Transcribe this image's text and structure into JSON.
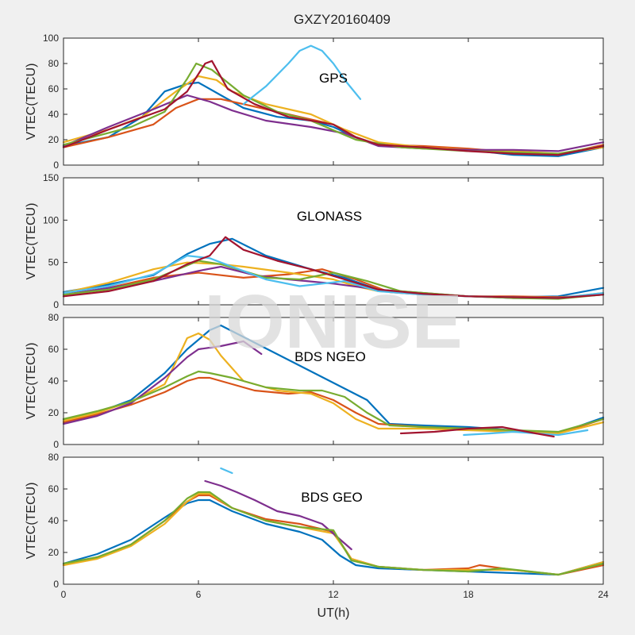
{
  "title": "GXZY20160409",
  "watermark": "IONISE",
  "x_axis": {
    "label": "UT(h)",
    "range": [
      0,
      24
    ],
    "ticks": [
      "0",
      "6",
      "12",
      "18",
      "24"
    ]
  },
  "colors": [
    "#0072bd",
    "#d95319",
    "#edb120",
    "#7e2f8e",
    "#77ac30",
    "#4dbeee",
    "#a2142f"
  ],
  "chart_data": [
    {
      "type": "line",
      "annotation": "GPS",
      "ylabel": "VTEC(TECU)",
      "ylim": [
        0,
        100
      ],
      "yticks": [
        "0",
        "20",
        "40",
        "60",
        "80",
        "100"
      ],
      "series": [
        {
          "x": [
            0,
            2,
            3.5,
            4.5,
            5.5,
            6,
            7,
            8,
            9.5,
            11,
            12,
            13,
            14,
            16,
            18,
            20,
            22,
            24
          ],
          "values": [
            15,
            22,
            38,
            58,
            64,
            65,
            55,
            45,
            38,
            35,
            30,
            22,
            16,
            14,
            12,
            8,
            7,
            14
          ]
        },
        {
          "x": [
            0,
            2,
            4,
            5,
            6,
            7,
            8,
            10,
            12,
            13,
            14,
            16,
            18,
            20,
            22,
            24
          ],
          "values": [
            14,
            22,
            32,
            45,
            52,
            52,
            48,
            40,
            32,
            22,
            16,
            15,
            13,
            10,
            8,
            16
          ]
        },
        {
          "x": [
            0,
            2,
            3.5,
            5,
            6,
            6.8,
            7.5,
            9,
            11,
            12.5,
            14,
            16,
            18,
            20,
            22,
            24
          ],
          "values": [
            18,
            28,
            38,
            58,
            70,
            67,
            58,
            48,
            40,
            28,
            18,
            14,
            12,
            11,
            9,
            14
          ]
        },
        {
          "x": [
            0,
            2,
            4,
            5.5,
            6.5,
            7.5,
            9,
            11,
            12.5,
            14,
            16,
            18,
            20,
            22,
            24
          ],
          "values": [
            15,
            30,
            44,
            55,
            50,
            43,
            35,
            30,
            25,
            15,
            13,
            12,
            12,
            11,
            18
          ]
        },
        {
          "x": [
            0,
            3,
            4.5,
            5.5,
            5.9,
            6.6,
            8,
            9.5,
            11,
            13,
            15,
            18,
            20,
            22,
            24
          ],
          "values": [
            16,
            30,
            42,
            68,
            80,
            75,
            55,
            42,
            35,
            20,
            14,
            11,
            10,
            9,
            15
          ]
        },
        {
          "x": [
            8,
            9,
            10,
            10.5,
            11,
            11.5,
            12,
            12.6,
            13.2
          ],
          "values": [
            48,
            62,
            80,
            90,
            94,
            90,
            80,
            65,
            52
          ]
        },
        {
          "x": [
            0,
            2,
            4.5,
            5.5,
            6.3,
            6.6,
            7.3,
            8.5,
            10,
            12,
            13,
            14,
            16,
            18,
            20,
            22,
            24
          ],
          "values": [
            14,
            28,
            44,
            58,
            80,
            82,
            60,
            48,
            38,
            32,
            22,
            16,
            14,
            11,
            9,
            8,
            15
          ]
        }
      ]
    },
    {
      "type": "line",
      "annotation": "GLONASS",
      "ylabel": "VTEC(TECU)",
      "ylim": [
        0,
        150
      ],
      "yticks": [
        "0",
        "50",
        "100",
        "150"
      ],
      "series": [
        {
          "x": [
            0,
            2,
            4,
            5.5,
            6.5,
            7.5,
            9,
            11,
            12.5,
            14,
            16,
            18,
            20,
            22,
            24
          ],
          "values": [
            15,
            24,
            35,
            60,
            72,
            78,
            58,
            42,
            32,
            18,
            13,
            10,
            9,
            10,
            20
          ]
        },
        {
          "x": [
            0,
            2,
            4,
            6,
            7,
            8,
            10,
            11.5,
            13,
            14.5,
            16,
            18,
            20,
            22,
            24
          ],
          "values": [
            10,
            20,
            32,
            38,
            35,
            32,
            36,
            42,
            30,
            15,
            12,
            10,
            10,
            9,
            12
          ]
        },
        {
          "x": [
            0,
            2,
            4,
            5.5,
            7,
            8,
            10,
            12,
            13,
            14,
            16,
            18,
            20,
            22,
            24
          ],
          "values": [
            14,
            26,
            42,
            50,
            48,
            45,
            38,
            30,
            22,
            16,
            13,
            10,
            9,
            8,
            14
          ]
        },
        {
          "x": [
            0,
            2,
            4,
            6,
            7,
            8.5,
            10,
            12,
            14,
            16,
            18,
            20,
            22,
            24
          ],
          "values": [
            12,
            20,
            28,
            40,
            45,
            35,
            30,
            25,
            18,
            14,
            10,
            8,
            8,
            12
          ]
        },
        {
          "x": [
            0,
            2,
            4,
            6,
            7,
            9,
            10.5,
            12,
            13.5,
            15,
            18,
            20,
            22,
            24
          ],
          "values": [
            12,
            18,
            30,
            52,
            48,
            32,
            30,
            38,
            28,
            16,
            10,
            8,
            7,
            12
          ]
        },
        {
          "x": [
            0,
            2,
            4,
            5.5,
            6.5,
            7.5,
            9,
            10.5,
            12.5,
            14,
            16,
            18,
            20,
            22,
            24
          ],
          "values": [
            14,
            22,
            36,
            58,
            55,
            45,
            30,
            22,
            28,
            16,
            12,
            10,
            9,
            8,
            14
          ]
        },
        {
          "x": [
            0,
            2,
            4,
            5.5,
            6.5,
            7.2,
            8,
            9.5,
            11,
            12.5,
            14,
            16,
            18,
            20,
            22,
            24
          ],
          "values": [
            10,
            16,
            28,
            48,
            58,
            80,
            65,
            52,
            42,
            30,
            18,
            13,
            10,
            9,
            8,
            12
          ]
        }
      ]
    },
    {
      "type": "line",
      "annotation": "BDS NGEO",
      "ylabel": "VTEC(TECU)",
      "ylim": [
        0,
        80
      ],
      "yticks": [
        "0",
        "20",
        "40",
        "60",
        "80"
      ],
      "series": [
        {
          "x": [
            0,
            1.5,
            3,
            4.5,
            5.5,
            6.5,
            7,
            13.5,
            14.5,
            16,
            18,
            20,
            22,
            24
          ],
          "values": [
            16,
            20,
            28,
            45,
            60,
            72,
            75,
            28,
            13,
            12,
            11,
            9,
            7,
            17
          ]
        },
        {
          "x": [
            0,
            1.5,
            3,
            4.5,
            5.5,
            6,
            6.5,
            7.5,
            8.5,
            10,
            11,
            12,
            13,
            14,
            16,
            18,
            20,
            22,
            24
          ],
          "values": [
            14,
            19,
            25,
            33,
            40,
            42,
            42,
            38,
            34,
            32,
            33,
            28,
            20,
            13,
            11,
            10,
            9,
            7,
            16
          ]
        },
        {
          "x": [
            0,
            1.5,
            3,
            4.5,
            5,
            5.5,
            6,
            6.5,
            7,
            8,
            9.5,
            11,
            12,
            13,
            14,
            16,
            18,
            20,
            22,
            24
          ],
          "values": [
            15,
            20,
            27,
            38,
            52,
            67,
            70,
            66,
            56,
            40,
            34,
            32,
            26,
            16,
            10,
            10,
            9,
            8,
            7,
            14
          ]
        },
        {
          "x": [
            0,
            1.5,
            3,
            4.5,
            5.5,
            6,
            7,
            8,
            8.8
          ],
          "values": [
            13,
            18,
            26,
            42,
            55,
            60,
            62,
            65,
            57
          ]
        },
        {
          "x": [
            0,
            1.5,
            3,
            4.5,
            5.5,
            6,
            6.5,
            7.5,
            9,
            10.5,
            11.5,
            12.5,
            13.5,
            14.5,
            16,
            18,
            20,
            22,
            24
          ],
          "values": [
            16,
            21,
            27,
            36,
            43,
            46,
            45,
            42,
            36,
            34,
            34,
            30,
            20,
            12,
            11,
            10,
            9,
            8,
            16
          ]
        },
        {
          "x": [
            17.8,
            19,
            20,
            22,
            23.3
          ],
          "values": [
            6,
            7,
            8,
            6,
            9
          ]
        },
        {
          "x": [
            15,
            16.5,
            18,
            19.5,
            21,
            21.8
          ],
          "values": [
            7,
            8,
            10,
            11,
            7,
            5
          ]
        }
      ]
    },
    {
      "type": "line",
      "annotation": "BDS GEO",
      "ylabel": "VTEC(TECU)",
      "ylim": [
        0,
        80
      ],
      "yticks": [
        "0",
        "20",
        "40",
        "60",
        "80"
      ],
      "series": [
        {
          "x": [
            0,
            1.5,
            3,
            4.5,
            5.5,
            6,
            6.5,
            7.5,
            9,
            10.5,
            11.5,
            12.3,
            13,
            14,
            16,
            18,
            20,
            22,
            24
          ],
          "values": [
            13,
            19,
            28,
            42,
            51,
            53,
            53,
            46,
            38,
            33,
            28,
            18,
            12,
            10,
            9,
            8,
            7,
            6,
            14
          ]
        },
        {
          "x": [
            0,
            1.5,
            3,
            4.5,
            5.5,
            6,
            6.5,
            7.5,
            9,
            10.5,
            12,
            12.8,
            14,
            16,
            18,
            18.5,
            20,
            22,
            24
          ],
          "values": [
            12,
            17,
            25,
            40,
            52,
            56,
            56,
            48,
            41,
            38,
            33,
            16,
            11,
            9,
            10,
            12,
            9,
            6,
            12
          ]
        },
        {
          "x": [
            0,
            1.5,
            3,
            4.5,
            5.5,
            6,
            6.5,
            7.5,
            9,
            10.5,
            12,
            12.8,
            14,
            16,
            18,
            20,
            22,
            24
          ],
          "values": [
            12,
            16,
            24,
            38,
            52,
            57,
            57,
            48,
            40,
            36,
            32,
            16,
            11,
            9,
            9,
            9,
            6,
            14
          ]
        },
        {
          "x": [
            6.3,
            7,
            7.7,
            8.5,
            9.5,
            10.5,
            11.5,
            12.8
          ],
          "values": [
            65,
            62,
            58,
            53,
            46,
            43,
            38,
            22
          ]
        },
        {
          "x": [
            0,
            1.5,
            3,
            4.5,
            5.5,
            6,
            6.5,
            7.5,
            9,
            10.5,
            12,
            12.8,
            14,
            16,
            18,
            19.5,
            22,
            24
          ],
          "values": [
            13,
            17,
            25,
            40,
            54,
            58,
            58,
            48,
            40,
            36,
            34,
            15,
            11,
            9,
            8,
            10,
            6,
            13
          ]
        },
        {
          "x": [
            7,
            7.5
          ],
          "values": [
            73,
            70
          ]
        }
      ]
    }
  ]
}
